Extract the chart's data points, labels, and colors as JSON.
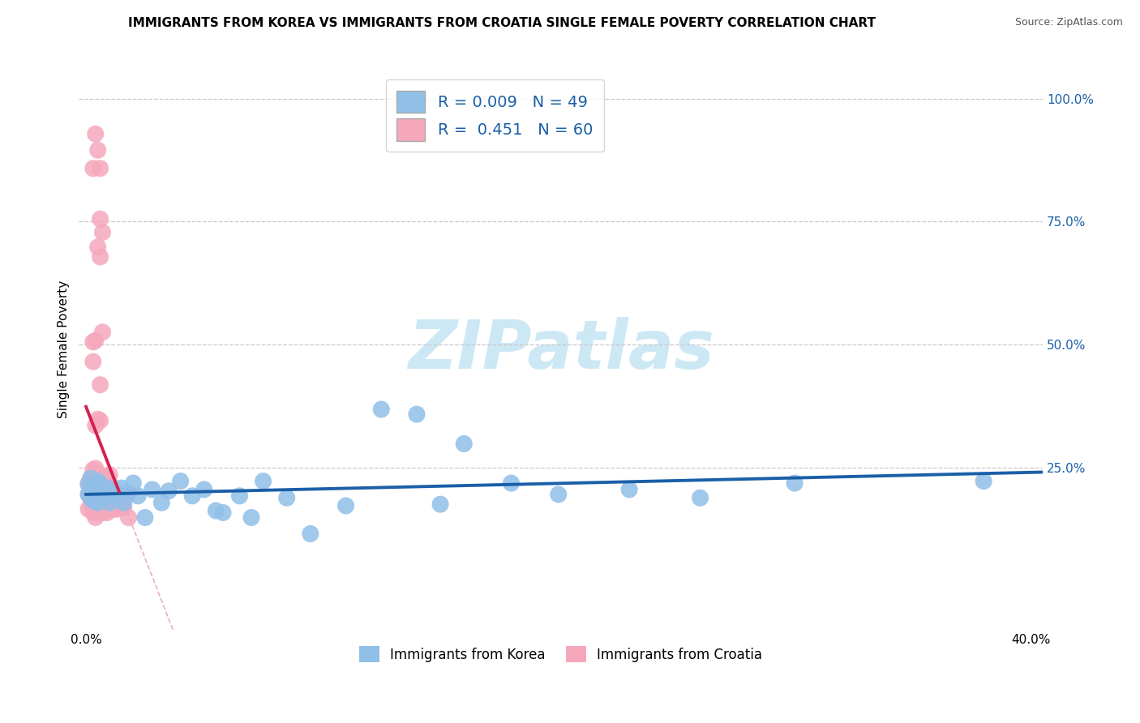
{
  "title": "IMMIGRANTS FROM KOREA VS IMMIGRANTS FROM CROATIA SINGLE FEMALE POVERTY CORRELATION CHART",
  "source": "Source: ZipAtlas.com",
  "ylabel": "Single Female Poverty",
  "xlim": [
    -0.003,
    0.405
  ],
  "ylim": [
    -0.08,
    1.06
  ],
  "xtick_positions": [
    0.0,
    0.4
  ],
  "xtick_labels": [
    "0.0%",
    "40.0%"
  ],
  "ytick_positions": [
    0.25,
    0.5,
    0.75,
    1.0
  ],
  "ytick_labels": [
    "25.0%",
    "50.0%",
    "75.0%",
    "100.0%"
  ],
  "grid_color": "#c8c8c8",
  "bg_color": "#ffffff",
  "korea_dot_color": "#90bfe8",
  "croatia_dot_color": "#f5a8bc",
  "korea_line_color": "#1a5fa8",
  "croatia_line_color": "#d42050",
  "diag_color": "#e8b0c0",
  "legend_label_korea": "R = 0.009   N = 49",
  "legend_label_croatia": "R =  0.451   N = 60",
  "title_fontsize": 11,
  "ylabel_fontsize": 11,
  "tick_fontsize": 11,
  "legend_fontsize": 14,
  "watermark": "ZIPatlas",
  "watermark_color": "#cde8f5",
  "watermark_size": 60,
  "korea_x": [
    0.001,
    0.001,
    0.002,
    0.002,
    0.003,
    0.003,
    0.004,
    0.004,
    0.005,
    0.005,
    0.006,
    0.006,
    0.007,
    0.008,
    0.009,
    0.01,
    0.011,
    0.012,
    0.013,
    0.015,
    0.016,
    0.018,
    0.02,
    0.022,
    0.025,
    0.028,
    0.032,
    0.035,
    0.04,
    0.045,
    0.05,
    0.058,
    0.065,
    0.075,
    0.085,
    0.095,
    0.11,
    0.125,
    0.14,
    0.16,
    0.18,
    0.2,
    0.23,
    0.26,
    0.3,
    0.055,
    0.07,
    0.15,
    0.38
  ],
  "korea_y": [
    0.195,
    0.215,
    0.188,
    0.228,
    0.182,
    0.21,
    0.185,
    0.205,
    0.178,
    0.222,
    0.195,
    0.215,
    0.188,
    0.192,
    0.208,
    0.178,
    0.195,
    0.202,
    0.188,
    0.208,
    0.178,
    0.198,
    0.218,
    0.192,
    0.148,
    0.205,
    0.178,
    0.202,
    0.222,
    0.192,
    0.205,
    0.158,
    0.192,
    0.222,
    0.188,
    0.115,
    0.172,
    0.368,
    0.358,
    0.298,
    0.218,
    0.195,
    0.205,
    0.188,
    0.218,
    0.162,
    0.148,
    0.175,
    0.222
  ],
  "croatia_x": [
    0.001,
    0.001,
    0.001,
    0.002,
    0.002,
    0.002,
    0.003,
    0.003,
    0.003,
    0.003,
    0.003,
    0.003,
    0.004,
    0.004,
    0.004,
    0.004,
    0.004,
    0.004,
    0.005,
    0.005,
    0.005,
    0.005,
    0.006,
    0.006,
    0.006,
    0.006,
    0.007,
    0.007,
    0.007,
    0.007,
    0.007,
    0.008,
    0.008,
    0.008,
    0.009,
    0.009,
    0.009,
    0.01,
    0.01,
    0.01,
    0.01,
    0.011,
    0.011,
    0.012,
    0.012,
    0.013,
    0.013,
    0.014,
    0.014,
    0.015,
    0.015,
    0.016,
    0.017,
    0.018,
    0.003,
    0.004,
    0.005,
    0.006,
    0.006,
    0.007
  ],
  "croatia_y": [
    0.165,
    0.195,
    0.218,
    0.175,
    0.205,
    0.228,
    0.158,
    0.185,
    0.205,
    0.225,
    0.245,
    0.175,
    0.148,
    0.175,
    0.205,
    0.228,
    0.248,
    0.192,
    0.158,
    0.185,
    0.205,
    0.225,
    0.165,
    0.188,
    0.215,
    0.235,
    0.158,
    0.185,
    0.208,
    0.228,
    0.178,
    0.165,
    0.192,
    0.215,
    0.158,
    0.185,
    0.208,
    0.165,
    0.188,
    0.215,
    0.235,
    0.168,
    0.195,
    0.165,
    0.195,
    0.165,
    0.192,
    0.168,
    0.192,
    0.168,
    0.195,
    0.168,
    0.192,
    0.148,
    0.465,
    0.508,
    0.348,
    0.678,
    0.858,
    0.728
  ],
  "croatia_high_x": [
    0.003,
    0.004,
    0.005,
    0.006,
    0.006,
    0.007,
    0.005,
    0.006,
    0.003,
    0.004
  ],
  "croatia_high_y": [
    0.858,
    0.928,
    0.698,
    0.345,
    0.418,
    0.525,
    0.895,
    0.755,
    0.505,
    0.335
  ]
}
